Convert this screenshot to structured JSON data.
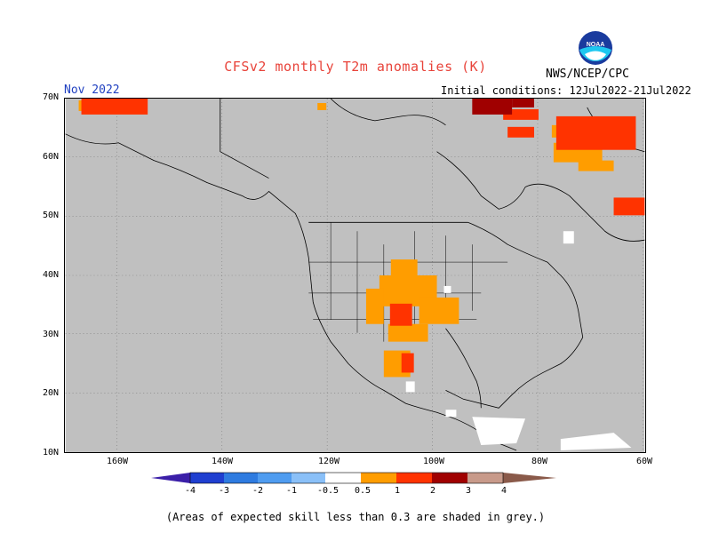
{
  "title": "CFSv2 monthly T2m anomalies (K)",
  "month_label": "Nov 2022",
  "agency": "NWS/NCEP/CPC",
  "init_conditions": "Initial conditions: 12Jul2022-21Jul2022",
  "logo_text": "NOAA",
  "lat_labels": [
    "70N",
    "60N",
    "50N",
    "40N",
    "30N",
    "20N",
    "10N"
  ],
  "lon_labels": [
    "160W",
    "140W",
    "120W",
    "100W",
    "80W",
    "60W"
  ],
  "colorbar": {
    "labels": [
      "-4",
      "-3",
      "-2",
      "-1",
      "-0.5",
      "0.5",
      "1",
      "2",
      "3",
      "4"
    ],
    "colors": [
      "#3b1fa8",
      "#1f3fd0",
      "#2e7be0",
      "#4f9cf0",
      "#8ac0f8",
      "#ffffff",
      "#ff9d00",
      "#ff3300",
      "#a00000",
      "#c89a8a",
      "#8a5a4a"
    ]
  },
  "footnote": "(Areas of expected skill less than 0.3 are shaded in grey.)",
  "legend_colors": {
    "grey_no_skill": "#c0c0c0",
    "anom_0_5_1": "#ff9d00",
    "anom_1_2": "#ff3300",
    "anom_2_3": "#a00000",
    "ocean_land_white": "#ffffff"
  }
}
